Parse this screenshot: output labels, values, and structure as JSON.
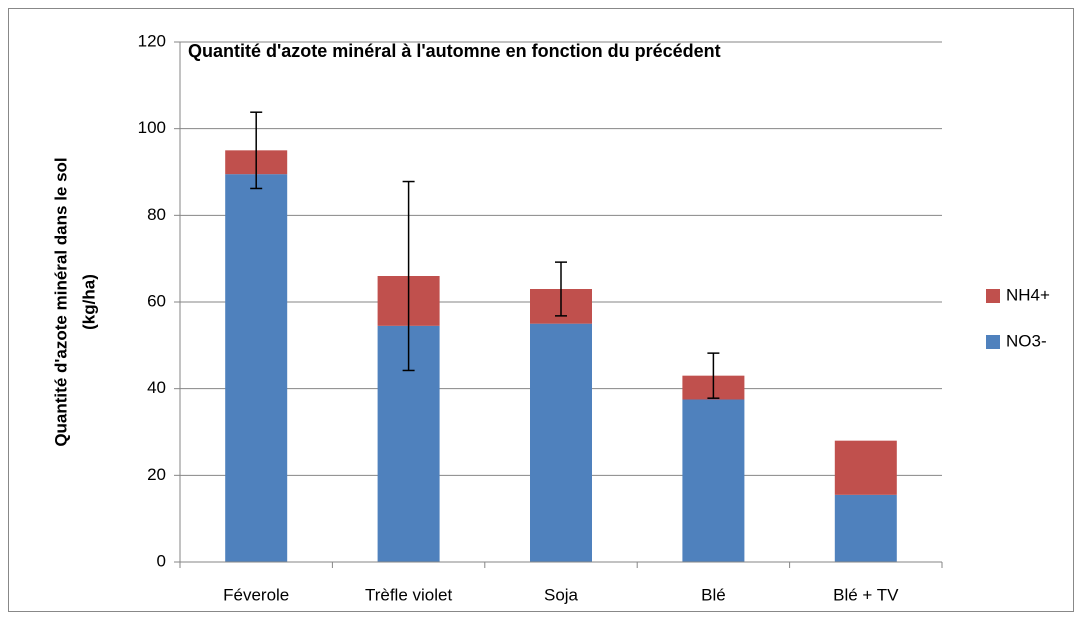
{
  "chart_data": {
    "type": "stacked_bar",
    "title": "Quantité d'azote minéral à l'automne en fonction du précédent",
    "y_label": [
      "Quantité d'azote minéral dans le sol",
      "(kg/ha)"
    ],
    "categories": [
      "Féverole",
      "Trèfle violet",
      "Soja",
      "Blé",
      "Blé + TV"
    ],
    "series": [
      {
        "name": "NO3-",
        "color": "#4f81bd",
        "values": [
          89.5,
          54.5,
          55,
          37.5,
          15.5
        ]
      },
      {
        "name": "NH4+",
        "color": "#c0504d",
        "values": [
          5.5,
          11.5,
          8,
          5.5,
          12.5
        ]
      }
    ],
    "errors": [
      8.8,
      21.8,
      6.2,
      5.2,
      null
    ],
    "ylim": [
      0,
      120
    ],
    "yticks": [
      0,
      20,
      40,
      60,
      80,
      100,
      120
    ],
    "grid": true,
    "legend": "right"
  }
}
